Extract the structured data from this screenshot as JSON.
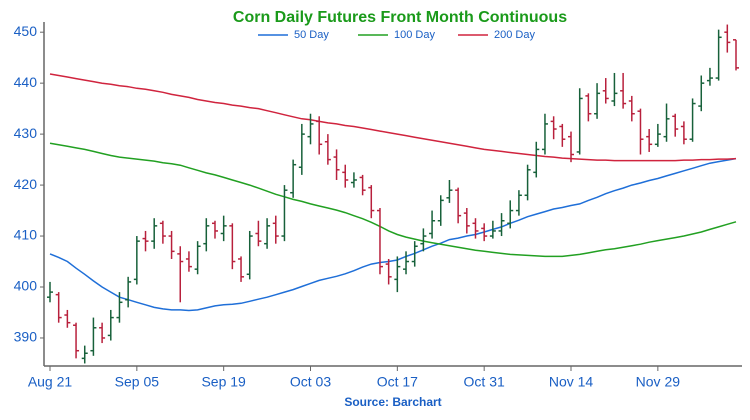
{
  "chart_data": {
    "type": "ohlc",
    "title": "Corn Daily Futures Front Month Continuous",
    "source": "Source: Barchart",
    "title_color": "#1a9a1a",
    "categories": [
      "Aug 21",
      null,
      null,
      null,
      null,
      null,
      null,
      null,
      null,
      null,
      "Sep 05",
      null,
      null,
      null,
      null,
      null,
      null,
      null,
      null,
      null,
      "Sep 19",
      null,
      null,
      null,
      null,
      null,
      null,
      null,
      null,
      null,
      "Oct 03",
      null,
      null,
      null,
      null,
      null,
      null,
      null,
      null,
      null,
      "Oct 17",
      null,
      null,
      null,
      null,
      null,
      null,
      null,
      null,
      null,
      "Oct 31",
      null,
      null,
      null,
      null,
      null,
      null,
      null,
      null,
      null,
      "Nov 14",
      null,
      null,
      null,
      null,
      null,
      null,
      null,
      null,
      null,
      "Nov 29",
      null,
      null,
      null,
      null,
      null,
      null,
      null,
      null,
      null
    ],
    "open": [
      398,
      398.5,
      394.5,
      392.5,
      386,
      387.5,
      392,
      390.5,
      394,
      397.5,
      401.5,
      409.5,
      409,
      412.5,
      410,
      406.5,
      405.5,
      403.5,
      408.5,
      412.5,
      410.5,
      412,
      405.5,
      402.5,
      410.5,
      408.5,
      412.5,
      410,
      418.5,
      423.5,
      429.5,
      432.5,
      428.5,
      425.5,
      422.5,
      420.5,
      421.5,
      419.5,
      415,
      404.5,
      401.5,
      403.5,
      405,
      408.5,
      410.5,
      413,
      417.5,
      419,
      414.5,
      412.5,
      411.5,
      410,
      411,
      412.5,
      415,
      418,
      422.5,
      427,
      432.5,
      431.5,
      429.5,
      426.5,
      437.5,
      434,
      438.5,
      436.5,
      438.5,
      436.5,
      434.5,
      429.5,
      428,
      429.5,
      433.5,
      431.5,
      429,
      435.5,
      440.5,
      441,
      450,
      448.5
    ],
    "high": [
      401,
      399,
      395.5,
      393,
      388.5,
      394,
      393,
      395.5,
      399,
      402,
      410,
      411,
      413.5,
      413,
      411,
      408,
      407,
      409,
      413.5,
      413,
      414,
      412.5,
      406,
      411,
      413,
      413.5,
      414,
      420,
      425,
      432,
      434,
      433.5,
      430,
      427,
      424,
      422.5,
      422,
      420,
      415.5,
      405.5,
      406,
      407,
      409,
      411.5,
      415,
      418,
      421,
      419.5,
      415.5,
      413.5,
      412.5,
      413,
      414.5,
      417,
      419,
      424,
      428.5,
      434,
      433.5,
      432,
      430.5,
      439,
      438,
      440,
      441,
      442,
      442,
      437.5,
      435,
      431,
      432,
      436,
      434,
      432.5,
      437,
      441.5,
      443,
      450.5,
      451.5,
      448.5
    ],
    "low": [
      397,
      393,
      392,
      386,
      385,
      386.5,
      389,
      389.5,
      393,
      396,
      400.5,
      407,
      407.5,
      408.5,
      405.5,
      397,
      403,
      402.5,
      407,
      409.5,
      409,
      403.5,
      401,
      401.5,
      408,
      407.5,
      408.5,
      409,
      417.5,
      422,
      428,
      426,
      424,
      421,
      419.5,
      419.5,
      418,
      413.5,
      402.5,
      400.5,
      399,
      402.5,
      404,
      407,
      409.5,
      412,
      416.5,
      412.5,
      410.5,
      409.5,
      409,
      409.5,
      410,
      411.5,
      414,
      417,
      421.5,
      426,
      429,
      427.5,
      424.5,
      426,
      432.5,
      433,
      436,
      435.5,
      435,
      432.5,
      426,
      426.5,
      427.5,
      428.5,
      429.5,
      428,
      428.5,
      434.5,
      439.5,
      440.5,
      446,
      442.5
    ],
    "close": [
      399,
      394,
      393,
      387.5,
      387,
      392,
      390,
      394,
      397,
      401,
      409,
      409,
      412,
      410,
      407,
      405,
      404,
      408,
      412,
      411,
      412,
      405,
      402,
      410,
      409,
      412,
      410,
      419,
      424,
      430,
      432,
      428,
      425,
      423,
      421,
      421,
      419,
      415,
      404,
      402,
      404,
      405,
      408,
      410,
      413,
      417,
      419,
      414,
      412,
      411,
      410,
      411,
      413,
      415,
      418,
      423,
      427,
      432,
      431,
      429,
      426,
      437,
      434,
      438,
      437,
      438,
      436,
      434,
      429,
      428,
      430,
      433,
      431,
      429,
      436,
      440,
      441,
      449,
      448,
      443
    ],
    "up_color": "#17613a",
    "down_color": "#b8203c",
    "series": [
      {
        "name": "50 Day",
        "color": "#1f6fd8",
        "values": [
          406.5,
          405.8,
          405,
          403.7,
          402.5,
          401.2,
          400,
          399,
          398,
          397.5,
          397,
          396.5,
          396,
          395.7,
          395.5,
          395.5,
          395.4,
          395.5,
          395.9,
          396.3,
          396.5,
          396.6,
          396.8,
          397.2,
          397.6,
          398,
          398.5,
          399,
          399.5,
          400.1,
          400.7,
          401.3,
          401.7,
          402.1,
          402.6,
          403.2,
          403.9,
          404.5,
          404.8,
          405,
          405.3,
          406,
          406.6,
          407.3,
          408,
          408.6,
          409.3,
          409.6,
          410,
          410.3,
          410.8,
          411.3,
          411.8,
          412.5,
          413.1,
          413.8,
          414.3,
          414.8,
          415.3,
          415.6,
          416,
          416.3,
          417,
          417.6,
          418.3,
          418.9,
          419.4,
          420,
          420.4,
          420.9,
          421.3,
          421.8,
          422.3,
          422.8,
          423.3,
          423.8,
          424.3,
          424.6,
          424.9,
          425.2
        ]
      },
      {
        "name": "100 Day",
        "color": "#22a022",
        "values": [
          428.2,
          427.9,
          427.6,
          427.3,
          427,
          426.6,
          426.2,
          425.8,
          425.5,
          425.3,
          425.1,
          424.9,
          424.7,
          424.4,
          424.2,
          423.9,
          423.4,
          422.9,
          422.4,
          422,
          421.5,
          421,
          420.5,
          420,
          419.4,
          418.8,
          418.2,
          417.7,
          417.2,
          416.8,
          416.3,
          415.9,
          415.5,
          415.1,
          414.6,
          414,
          413.4,
          412.7,
          411.9,
          411,
          410.3,
          409.8,
          409.4,
          409,
          408.7,
          408.4,
          408.1,
          407.8,
          407.5,
          407.2,
          407,
          406.8,
          406.6,
          406.4,
          406.3,
          406.2,
          406.1,
          406,
          406,
          406,
          406.2,
          406.4,
          406.7,
          407,
          407.3,
          407.5,
          407.8,
          408.1,
          408.4,
          408.8,
          409.1,
          409.4,
          409.7,
          410,
          410.4,
          410.8,
          411.3,
          411.8,
          412.3,
          412.8
        ]
      },
      {
        "name": "200 Day",
        "color": "#d0243e",
        "values": [
          441.8,
          441.5,
          441.2,
          440.9,
          440.6,
          440.3,
          440,
          439.8,
          439.5,
          439.3,
          439,
          438.8,
          438.5,
          438.2,
          437.8,
          437.5,
          437.2,
          436.8,
          436.5,
          436.2,
          436,
          435.7,
          435.5,
          435.2,
          435,
          434.6,
          434.2,
          433.8,
          433.4,
          433,
          432.8,
          432.5,
          432.2,
          432,
          431.7,
          431.5,
          431.2,
          430.9,
          430.6,
          430.3,
          430,
          429.7,
          429.4,
          429.1,
          428.8,
          428.5,
          428.2,
          427.9,
          427.6,
          427.3,
          427,
          426.8,
          426.6,
          426.4,
          426.2,
          426,
          425.8,
          425.6,
          425.5,
          425.3,
          425.2,
          425.1,
          425,
          424.9,
          424.9,
          424.8,
          424.8,
          424.8,
          424.8,
          424.8,
          424.8,
          424.8,
          424.8,
          424.9,
          424.9,
          425,
          425,
          425.1,
          425.1,
          425.2
        ]
      }
    ],
    "ylim": [
      384.5,
      452
    ],
    "yticks": [
      390,
      400,
      410,
      420,
      430,
      440,
      450
    ],
    "grid": false,
    "legend": "top"
  }
}
